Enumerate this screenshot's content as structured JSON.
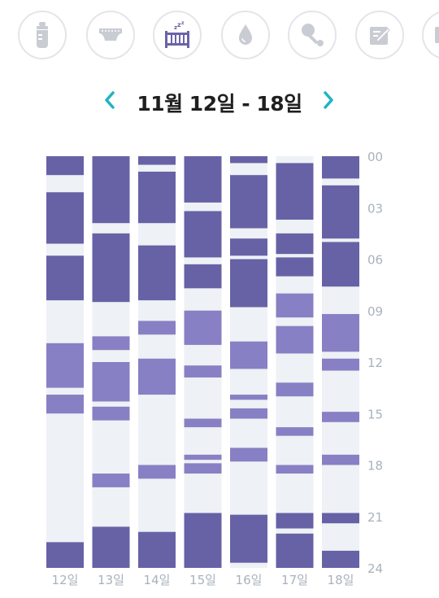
{
  "toolbar": {
    "icons": [
      {
        "name": "baby-bottle-icon",
        "active": false
      },
      {
        "name": "diaper-icon",
        "active": false
      },
      {
        "name": "crib-sleep-icon",
        "active": true
      },
      {
        "name": "water-drop-icon",
        "active": false
      },
      {
        "name": "rattle-icon",
        "active": false
      },
      {
        "name": "note-edit-icon",
        "active": false
      },
      {
        "name": "more-icon",
        "active": false
      }
    ]
  },
  "header": {
    "range_title": "11월 12일 - 18일",
    "prev_icon": "chevron-left-icon",
    "next_icon": "chevron-right-icon"
  },
  "colors": {
    "accent": "#21b3c4",
    "icon_gray": "#c9ccd3",
    "icon_active": "#6a63a8",
    "night_sleep": "#6762a6",
    "nap": "#8880c4",
    "column_bg": "#eef1f5",
    "label": "#a9b2bc"
  },
  "chart_data": {
    "type": "bar",
    "description_axis": "hours of day (0-24), one column per day",
    "categories": [
      "12일",
      "13일",
      "14일",
      "15일",
      "16일",
      "17일",
      "18일"
    ],
    "y_ticks": [
      "00",
      "03",
      "06",
      "09",
      "12",
      "15",
      "18",
      "21",
      "24"
    ],
    "ylim": [
      0,
      24
    ],
    "series": [
      {
        "day": "12일",
        "segments": [
          {
            "start": 0.0,
            "end": 1.1,
            "kind": "night"
          },
          {
            "start": 2.1,
            "end": 5.1,
            "kind": "night"
          },
          {
            "start": 5.8,
            "end": 8.4,
            "kind": "night"
          },
          {
            "start": 10.9,
            "end": 13.5,
            "kind": "nap"
          },
          {
            "start": 13.9,
            "end": 15.0,
            "kind": "nap"
          },
          {
            "start": 22.5,
            "end": 24.0,
            "kind": "night"
          }
        ]
      },
      {
        "day": "13일",
        "segments": [
          {
            "start": 0.0,
            "end": 3.9,
            "kind": "night"
          },
          {
            "start": 4.5,
            "end": 8.5,
            "kind": "night"
          },
          {
            "start": 10.5,
            "end": 11.3,
            "kind": "nap"
          },
          {
            "start": 12.0,
            "end": 14.3,
            "kind": "nap"
          },
          {
            "start": 14.6,
            "end": 15.4,
            "kind": "nap"
          },
          {
            "start": 18.5,
            "end": 19.3,
            "kind": "nap"
          },
          {
            "start": 21.6,
            "end": 24.0,
            "kind": "night"
          }
        ]
      },
      {
        "day": "14일",
        "segments": [
          {
            "start": 0.0,
            "end": 0.5,
            "kind": "night"
          },
          {
            "start": 0.9,
            "end": 3.9,
            "kind": "night"
          },
          {
            "start": 5.2,
            "end": 8.4,
            "kind": "night"
          },
          {
            "start": 9.6,
            "end": 10.4,
            "kind": "nap"
          },
          {
            "start": 11.8,
            "end": 13.9,
            "kind": "nap"
          },
          {
            "start": 18.0,
            "end": 18.8,
            "kind": "nap"
          },
          {
            "start": 21.9,
            "end": 24.0,
            "kind": "night"
          }
        ]
      },
      {
        "day": "15일",
        "segments": [
          {
            "start": 0.0,
            "end": 2.7,
            "kind": "night"
          },
          {
            "start": 3.2,
            "end": 5.9,
            "kind": "night"
          },
          {
            "start": 6.3,
            "end": 7.7,
            "kind": "night"
          },
          {
            "start": 9.0,
            "end": 11.0,
            "kind": "nap"
          },
          {
            "start": 12.2,
            "end": 12.9,
            "kind": "nap"
          },
          {
            "start": 15.3,
            "end": 15.8,
            "kind": "nap"
          },
          {
            "start": 17.4,
            "end": 17.7,
            "kind": "nap"
          },
          {
            "start": 17.9,
            "end": 18.5,
            "kind": "nap"
          },
          {
            "start": 20.8,
            "end": 24.0,
            "kind": "night"
          }
        ]
      },
      {
        "day": "16일",
        "segments": [
          {
            "start": 0.0,
            "end": 0.4,
            "kind": "night"
          },
          {
            "start": 1.1,
            "end": 4.2,
            "kind": "night"
          },
          {
            "start": 4.8,
            "end": 5.8,
            "kind": "night"
          },
          {
            "start": 6.0,
            "end": 8.8,
            "kind": "night"
          },
          {
            "start": 10.8,
            "end": 12.4,
            "kind": "nap"
          },
          {
            "start": 13.9,
            "end": 14.2,
            "kind": "nap"
          },
          {
            "start": 14.7,
            "end": 15.3,
            "kind": "nap"
          },
          {
            "start": 17.0,
            "end": 17.8,
            "kind": "nap"
          },
          {
            "start": 20.9,
            "end": 23.7,
            "kind": "night"
          }
        ]
      },
      {
        "day": "17일",
        "segments": [
          {
            "start": 0.4,
            "end": 3.7,
            "kind": "night"
          },
          {
            "start": 4.5,
            "end": 5.7,
            "kind": "night"
          },
          {
            "start": 5.9,
            "end": 7.0,
            "kind": "night"
          },
          {
            "start": 8.0,
            "end": 9.4,
            "kind": "nap"
          },
          {
            "start": 9.9,
            "end": 11.5,
            "kind": "nap"
          },
          {
            "start": 13.2,
            "end": 14.0,
            "kind": "nap"
          },
          {
            "start": 15.8,
            "end": 16.3,
            "kind": "nap"
          },
          {
            "start": 18.0,
            "end": 18.5,
            "kind": "nap"
          },
          {
            "start": 20.8,
            "end": 21.7,
            "kind": "night"
          },
          {
            "start": 22.0,
            "end": 24.0,
            "kind": "night"
          }
        ]
      },
      {
        "day": "18일",
        "segments": [
          {
            "start": 0.0,
            "end": 1.3,
            "kind": "night"
          },
          {
            "start": 1.7,
            "end": 4.8,
            "kind": "night"
          },
          {
            "start": 5.0,
            "end": 7.6,
            "kind": "night"
          },
          {
            "start": 9.2,
            "end": 11.4,
            "kind": "nap"
          },
          {
            "start": 11.8,
            "end": 12.5,
            "kind": "nap"
          },
          {
            "start": 14.9,
            "end": 15.5,
            "kind": "nap"
          },
          {
            "start": 17.4,
            "end": 18.0,
            "kind": "nap"
          },
          {
            "start": 20.8,
            "end": 21.4,
            "kind": "night"
          },
          {
            "start": 23.0,
            "end": 24.0,
            "kind": "night"
          }
        ]
      }
    ]
  }
}
